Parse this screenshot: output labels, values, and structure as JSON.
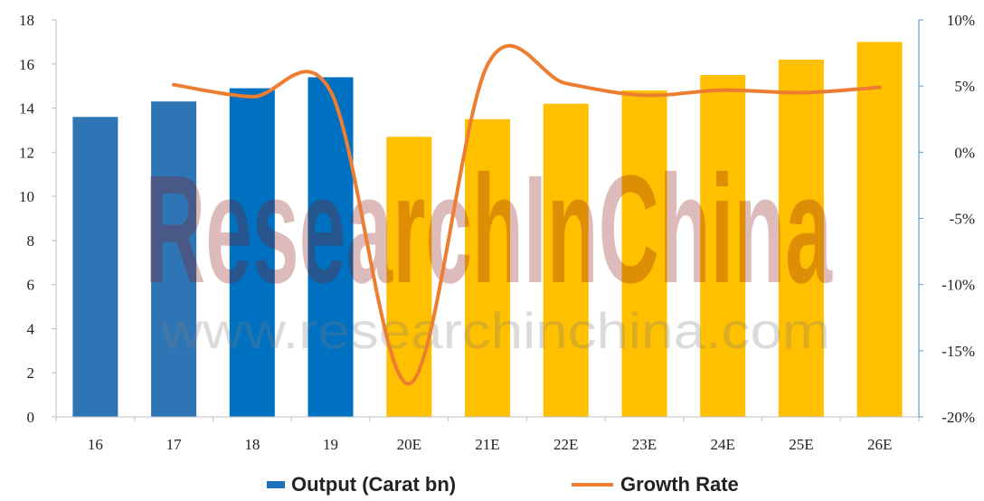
{
  "chart_data": {
    "type": "bar",
    "categories": [
      "16",
      "17",
      "18",
      "19",
      "20E",
      "21E",
      "22E",
      "23E",
      "24E",
      "25E",
      "26E"
    ],
    "series": [
      {
        "name": "Output (Carat bn)",
        "kind": "bar",
        "axis": "left",
        "values": [
          13.6,
          14.3,
          14.9,
          15.4,
          12.7,
          13.5,
          14.2,
          14.8,
          15.5,
          16.2,
          17.0
        ],
        "colors": [
          "#2E75B6",
          "#2E75B6",
          "#0070C0",
          "#0070C0",
          "#FFC000",
          "#FFC000",
          "#FFC000",
          "#FFC000",
          "#FFC000",
          "#FFC000",
          "#FFC000"
        ]
      },
      {
        "name": "Growth Rate",
        "kind": "line",
        "axis": "right",
        "x": [
          "17",
          "18",
          "19",
          "20E",
          "21E",
          "22E",
          "23E",
          "24E",
          "25E",
          "26E"
        ],
        "values": [
          5.1,
          4.2,
          4.6,
          -17.5,
          6.6,
          5.2,
          4.3,
          4.7,
          4.5,
          4.9
        ],
        "color": "#ED7D31"
      }
    ],
    "y_left": {
      "ylim": [
        0,
        18
      ],
      "ticks": [
        "0",
        "2",
        "4",
        "6",
        "8",
        "10",
        "12",
        "14",
        "16",
        "18"
      ]
    },
    "y_right": {
      "ylim": [
        -20,
        10
      ],
      "ticks": [
        "-20%",
        "-15%",
        "-10%",
        "-5%",
        "0%",
        "5%",
        "10%"
      ]
    },
    "grid": false,
    "legend_position": "bottom",
    "legend": [
      {
        "label": "Output (Carat bn)",
        "color": "#1F6FBF",
        "marker": "bar"
      },
      {
        "label": "Growth Rate",
        "color": "#ED7D31",
        "marker": "line"
      }
    ],
    "axis_colors": {
      "left": "#BFBFBF",
      "right": "#5B9BD5"
    }
  },
  "watermark": {
    "logo_text": "ResearchInChina",
    "url_text": "www.researchinchina.com"
  }
}
